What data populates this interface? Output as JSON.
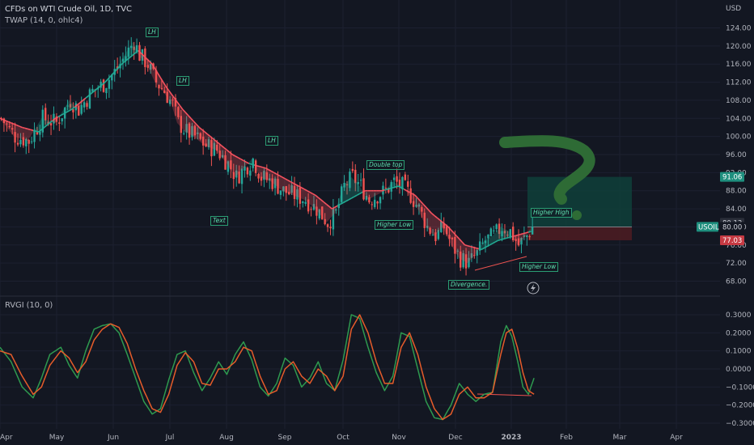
{
  "header": {
    "title": "CFDs on WTI Crude Oil, 1D, TVC",
    "indicator": "TWAP (14, 0, ohlc4)",
    "osc_label": "RVGI (10, 0)"
  },
  "currency": "USD",
  "annotations": {
    "lh1": "LH",
    "lh2": "LH",
    "lh3": "LH",
    "double_top": "Double top",
    "higher_low1": "Higher Low",
    "higher_low2": "Higher Low",
    "higher_high": "Higher High",
    "divergence": "Divergence.",
    "text": "Text",
    "ticker": "USOIL"
  },
  "price_tags": {
    "target": "91.06",
    "last": "80.13",
    "entry": "80.00",
    "stop": "77.03"
  },
  "colors": {
    "bull": "#26a69a",
    "bear": "#ef5350",
    "twap_up": "#22ab94",
    "twap_down": "#f7525f",
    "green_fill": "#0f3f3a",
    "red_fill": "#4a1c22",
    "rvgi_green": "#2e9a4f",
    "rvgi_red": "#e65c2a",
    "sketch": "#2e6b35"
  },
  "chart_data": [
    {
      "type": "candlestick",
      "title": "CFDs on WTI Crude Oil, 1D, TVC",
      "ylabel": "USD",
      "ylim": [
        64,
        128
      ],
      "yticks": [
        68,
        72,
        76,
        80,
        84,
        88,
        92,
        96,
        100,
        104,
        108,
        112,
        116,
        120,
        124
      ],
      "ytick_labels": [
        "68.00",
        "72.00",
        "76.00",
        "80.00",
        "84.00",
        "88.00",
        "92.00",
        "96.00",
        "100.00",
        "104.00",
        "108.00",
        "112.00",
        "116.00",
        "120.00",
        "124.00"
      ],
      "x_tick_labels": [
        "Apr",
        "May",
        "Jun",
        "Jul",
        "Aug",
        "Sep",
        "Oct",
        "Nov",
        "Dec",
        "2023",
        "Feb",
        "Mar",
        "Apr"
      ],
      "close_points": [
        [
          0,
          104
        ],
        [
          5,
          100
        ],
        [
          10,
          99
        ],
        [
          15,
          104
        ],
        [
          20,
          103
        ],
        [
          25,
          108
        ],
        [
          28,
          106
        ],
        [
          33,
          110
        ],
        [
          38,
          112
        ],
        [
          42,
          115
        ],
        [
          46,
          119
        ],
        [
          48,
          121
        ],
        [
          50,
          118
        ],
        [
          53,
          116
        ],
        [
          56,
          112
        ],
        [
          59,
          110
        ],
        [
          62,
          107
        ],
        [
          64,
          103
        ],
        [
          67,
          101
        ],
        [
          70,
          100
        ],
        [
          74,
          98
        ],
        [
          78,
          97
        ],
        [
          82,
          94
        ],
        [
          85,
          91
        ],
        [
          88,
          93
        ],
        [
          91,
          95
        ],
        [
          94,
          91
        ],
        [
          98,
          90
        ],
        [
          102,
          88
        ],
        [
          106,
          87
        ],
        [
          110,
          86
        ],
        [
          114,
          84
        ],
        [
          118,
          81
        ],
        [
          121,
          83
        ],
        [
          124,
          89
        ],
        [
          127,
          91
        ],
        [
          130,
          89
        ],
        [
          133,
          86
        ],
        [
          136,
          87
        ],
        [
          139,
          88
        ],
        [
          142,
          90
        ],
        [
          145,
          89
        ],
        [
          148,
          87
        ],
        [
          151,
          84
        ],
        [
          154,
          80
        ],
        [
          157,
          78
        ],
        [
          160,
          80
        ],
        [
          163,
          76
        ],
        [
          166,
          73
        ],
        [
          169,
          72
        ],
        [
          172,
          74
        ],
        [
          175,
          77
        ],
        [
          178,
          78
        ],
        [
          181,
          80
        ],
        [
          184,
          79
        ],
        [
          187,
          76
        ],
        [
          190,
          78
        ],
        [
          192,
          80
        ]
      ],
      "overlay": {
        "name": "TWAP (14, 0, ohlc4)",
        "points": [
          [
            0,
            104
          ],
          [
            8,
            102
          ],
          [
            14,
            101
          ],
          [
            20,
            104
          ],
          [
            26,
            106
          ],
          [
            32,
            109
          ],
          [
            38,
            112
          ],
          [
            44,
            116
          ],
          [
            50,
            119
          ],
          [
            55,
            116
          ],
          [
            60,
            111
          ],
          [
            66,
            106
          ],
          [
            72,
            102
          ],
          [
            78,
            99
          ],
          [
            84,
            96
          ],
          [
            90,
            94
          ],
          [
            96,
            93
          ],
          [
            102,
            91
          ],
          [
            108,
            89
          ],
          [
            114,
            87
          ],
          [
            120,
            84
          ],
          [
            126,
            86
          ],
          [
            132,
            88
          ],
          [
            138,
            88
          ],
          [
            144,
            89
          ],
          [
            150,
            87
          ],
          [
            156,
            83
          ],
          [
            162,
            80
          ],
          [
            168,
            76
          ],
          [
            174,
            75
          ],
          [
            180,
            77
          ],
          [
            186,
            78
          ],
          [
            192,
            79
          ]
        ]
      },
      "position": {
        "entry": 80.0,
        "target": 91.06,
        "stop": 77.03
      }
    },
    {
      "type": "line",
      "title": "RVGI (10, 0)",
      "ylim": [
        -0.33,
        0.35
      ],
      "yticks": [
        0.3,
        0.2,
        0.1,
        0.0,
        -0.1,
        -0.2,
        -0.3
      ],
      "ytick_labels": [
        "0.3000",
        "0.2000",
        "0.1000",
        "0.0000",
        "−0.1000",
        "−0.2000",
        "−0.3000"
      ],
      "series": [
        {
          "color": "#2e9a4f",
          "points": [
            [
              0,
              0.12
            ],
            [
              4,
              0.04
            ],
            [
              8,
              -0.1
            ],
            [
              12,
              -0.16
            ],
            [
              15,
              -0.05
            ],
            [
              18,
              0.08
            ],
            [
              22,
              0.12
            ],
            [
              25,
              0.02
            ],
            [
              28,
              -0.05
            ],
            [
              31,
              0.1
            ],
            [
              34,
              0.22
            ],
            [
              37,
              0.24
            ],
            [
              40,
              0.25
            ],
            [
              43,
              0.2
            ],
            [
              46,
              0.08
            ],
            [
              49,
              -0.05
            ],
            [
              52,
              -0.18
            ],
            [
              55,
              -0.25
            ],
            [
              58,
              -0.22
            ],
            [
              61,
              -0.06
            ],
            [
              64,
              0.08
            ],
            [
              67,
              0.1
            ],
            [
              70,
              -0.02
            ],
            [
              73,
              -0.12
            ],
            [
              76,
              -0.05
            ],
            [
              79,
              0.04
            ],
            [
              82,
              -0.03
            ],
            [
              85,
              0.08
            ],
            [
              88,
              0.15
            ],
            [
              91,
              0.05
            ],
            [
              94,
              -0.1
            ],
            [
              97,
              -0.15
            ],
            [
              100,
              -0.08
            ],
            [
              103,
              0.06
            ],
            [
              106,
              0.02
            ],
            [
              109,
              -0.1
            ],
            [
              112,
              -0.05
            ],
            [
              115,
              0.04
            ],
            [
              118,
              -0.08
            ],
            [
              121,
              -0.12
            ],
            [
              124,
              0.05
            ],
            [
              127,
              0.3
            ],
            [
              130,
              0.28
            ],
            [
              133,
              0.12
            ],
            [
              136,
              -0.02
            ],
            [
              139,
              -0.12
            ],
            [
              142,
              -0.04
            ],
            [
              145,
              0.2
            ],
            [
              148,
              0.18
            ],
            [
              151,
              0.0
            ],
            [
              154,
              -0.18
            ],
            [
              157,
              -0.27
            ],
            [
              160,
              -0.28
            ],
            [
              163,
              -0.2
            ],
            [
              166,
              -0.08
            ],
            [
              169,
              -0.14
            ],
            [
              172,
              -0.18
            ],
            [
              175,
              -0.14
            ],
            [
              178,
              -0.13
            ],
            [
              181,
              0.15
            ],
            [
              183,
              0.24
            ],
            [
              185,
              0.18
            ],
            [
              187,
              0.05
            ],
            [
              189,
              -0.1
            ],
            [
              191,
              -0.14
            ],
            [
              193,
              -0.05
            ]
          ]
        },
        {
          "color": "#e65c2a",
          "points": [
            [
              0,
              0.1
            ],
            [
              4,
              0.08
            ],
            [
              8,
              -0.04
            ],
            [
              12,
              -0.14
            ],
            [
              15,
              -0.1
            ],
            [
              18,
              0.02
            ],
            [
              22,
              0.1
            ],
            [
              25,
              0.06
            ],
            [
              28,
              -0.02
            ],
            [
              31,
              0.04
            ],
            [
              34,
              0.16
            ],
            [
              37,
              0.22
            ],
            [
              40,
              0.25
            ],
            [
              43,
              0.23
            ],
            [
              46,
              0.14
            ],
            [
              49,
              0.0
            ],
            [
              52,
              -0.12
            ],
            [
              55,
              -0.22
            ],
            [
              58,
              -0.24
            ],
            [
              61,
              -0.14
            ],
            [
              64,
              0.02
            ],
            [
              67,
              0.09
            ],
            [
              70,
              0.04
            ],
            [
              73,
              -0.08
            ],
            [
              76,
              -0.09
            ],
            [
              79,
              0.0
            ],
            [
              82,
              0.0
            ],
            [
              85,
              0.04
            ],
            [
              88,
              0.12
            ],
            [
              91,
              0.1
            ],
            [
              94,
              -0.04
            ],
            [
              97,
              -0.14
            ],
            [
              100,
              -0.12
            ],
            [
              103,
              0.0
            ],
            [
              106,
              0.04
            ],
            [
              109,
              -0.04
            ],
            [
              112,
              -0.08
            ],
            [
              115,
              0.0
            ],
            [
              118,
              -0.04
            ],
            [
              121,
              -0.12
            ],
            [
              124,
              -0.04
            ],
            [
              127,
              0.22
            ],
            [
              130,
              0.3
            ],
            [
              133,
              0.2
            ],
            [
              136,
              0.04
            ],
            [
              139,
              -0.08
            ],
            [
              142,
              -0.08
            ],
            [
              145,
              0.12
            ],
            [
              148,
              0.2
            ],
            [
              151,
              0.08
            ],
            [
              154,
              -0.1
            ],
            [
              157,
              -0.22
            ],
            [
              160,
              -0.28
            ],
            [
              163,
              -0.25
            ],
            [
              166,
              -0.14
            ],
            [
              169,
              -0.1
            ],
            [
              172,
              -0.16
            ],
            [
              175,
              -0.16
            ],
            [
              178,
              -0.13
            ],
            [
              181,
              0.08
            ],
            [
              183,
              0.2
            ],
            [
              185,
              0.22
            ],
            [
              187,
              0.12
            ],
            [
              189,
              -0.02
            ],
            [
              191,
              -0.12
            ],
            [
              193,
              -0.14
            ]
          ]
        }
      ]
    }
  ]
}
